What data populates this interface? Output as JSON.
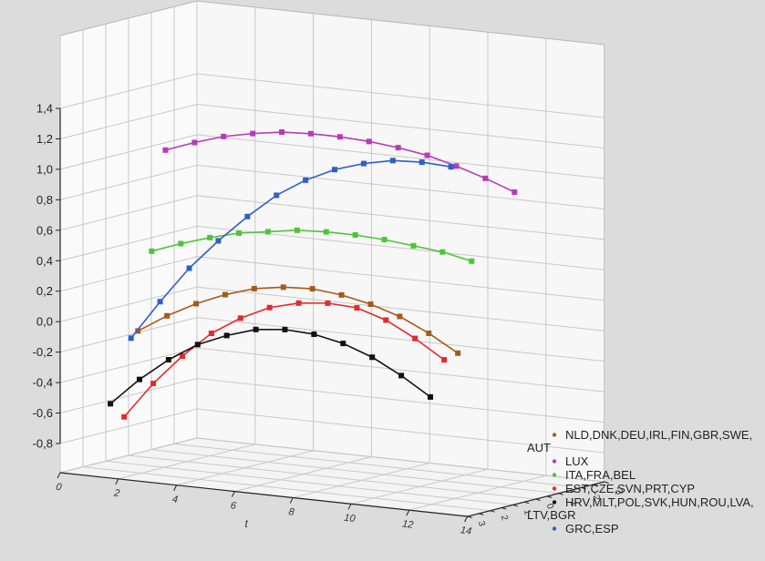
{
  "chart_data": {
    "type": "line",
    "title": "",
    "xlabel": "t",
    "ylabel": "",
    "zlabel": "",
    "x_ticks": [
      "0",
      "2",
      "4",
      "6",
      "8",
      "10",
      "12",
      "14"
    ],
    "y_ticks": [
      "1,4",
      "1,2",
      "1,0",
      "0,8",
      "0,6",
      "0,4",
      "0,2",
      "0,0",
      "-0,2",
      "-0,4",
      "-0,6",
      "-0,8"
    ],
    "z_ticks": [
      "3",
      "2",
      "1",
      "0",
      "-1",
      "-2",
      "-3"
    ],
    "ylim": [
      -0.8,
      1.4
    ],
    "xlim": [
      0,
      14
    ],
    "grid": true,
    "legend_position": "bottom-right",
    "series": [
      {
        "name": "NLD,DNK,DEU,IRL,FIN,GBR,SWE,\nAUT",
        "color": "#a65a1a",
        "depth": 1,
        "x": [
          1,
          2,
          3,
          4,
          5,
          6,
          7,
          8,
          9,
          10,
          11,
          12
        ],
        "values": [
          -0.05,
          0.07,
          0.17,
          0.25,
          0.31,
          0.34,
          0.35,
          0.33,
          0.29,
          0.23,
          0.14,
          0.03
        ]
      },
      {
        "name": "LUX",
        "color": "#b83ab8",
        "depth": 3,
        "x": [
          1,
          2,
          3,
          4,
          5,
          6,
          7,
          8,
          9,
          10,
          11,
          12,
          13
        ],
        "values": [
          1.07,
          1.14,
          1.2,
          1.24,
          1.27,
          1.28,
          1.28,
          1.27,
          1.25,
          1.22,
          1.17,
          1.11,
          1.04
        ]
      },
      {
        "name": "ITA,FRA,BEL",
        "color": "#4fc43a",
        "depth": 2,
        "x": [
          1,
          2,
          3,
          4,
          5,
          6,
          7,
          8,
          9,
          10,
          11,
          12
        ],
        "values": [
          0.44,
          0.51,
          0.57,
          0.62,
          0.65,
          0.68,
          0.69,
          0.69,
          0.68,
          0.66,
          0.64,
          0.6
        ]
      },
      {
        "name": "EST,CZE,SVN,PRT,CYP",
        "color": "#e52a2a",
        "depth": 0,
        "x": [
          1,
          2,
          3,
          4,
          5,
          6,
          7,
          8,
          9,
          10,
          11,
          12
        ],
        "values": [
          -0.58,
          -0.34,
          -0.14,
          0.03,
          0.15,
          0.24,
          0.29,
          0.31,
          0.3,
          0.24,
          0.14,
          0.02
        ]
      },
      {
        "name": "HRV,MLT,POL,SVK,HUN,ROU,LVA,\nLTV,BGR",
        "color": "#111111",
        "depth": -1,
        "x": [
          1,
          2,
          3,
          4,
          5,
          6,
          7,
          8,
          9,
          10,
          11,
          12
        ],
        "values": [
          -0.46,
          -0.28,
          -0.13,
          -0.01,
          0.07,
          0.13,
          0.15,
          0.14,
          0.1,
          0.03,
          -0.07,
          -0.19
        ]
      },
      {
        "name": "GRC,ESP",
        "color": "#2f5fc8",
        "depth": 0.5,
        "x": [
          1,
          2,
          3,
          4,
          5,
          6,
          7,
          8,
          9,
          10,
          11,
          12
        ],
        "values": [
          -0.08,
          0.18,
          0.42,
          0.62,
          0.8,
          0.96,
          1.08,
          1.17,
          1.23,
          1.27,
          1.28,
          1.27
        ]
      }
    ]
  }
}
